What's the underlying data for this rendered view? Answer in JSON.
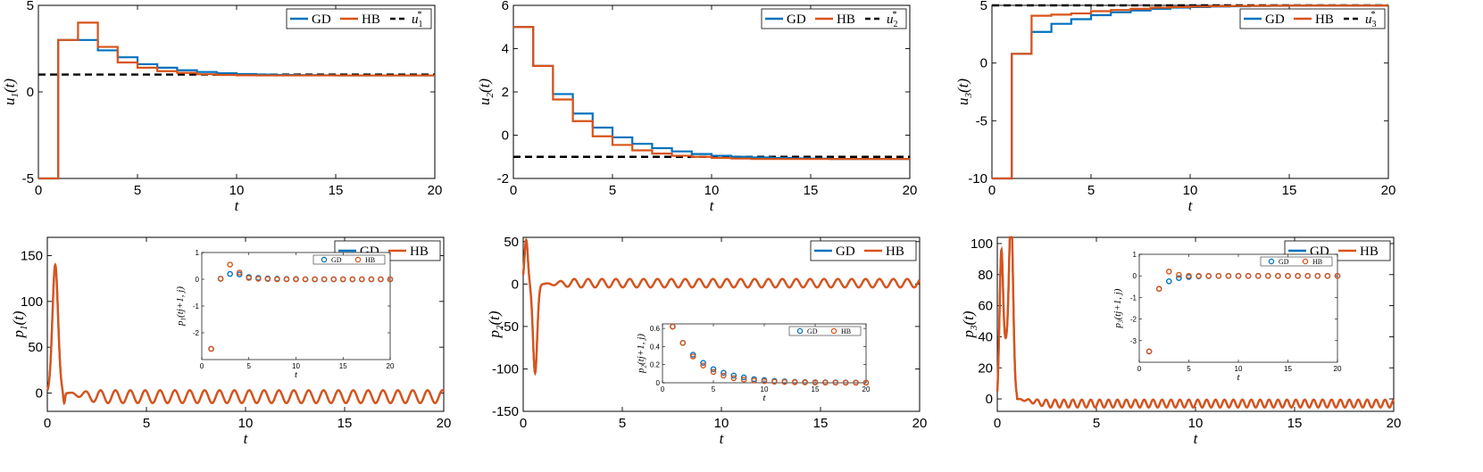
{
  "colors": {
    "gd": "#0072BD",
    "hb": "#D95319",
    "ref": "#000000",
    "axis": "#000000"
  },
  "chart_data": [
    {
      "id": "u1",
      "type": "line",
      "ylabel": "u1(t)",
      "xlabel": "t",
      "xlim": [
        0,
        20
      ],
      "ylim": [
        -5,
        5
      ],
      "xticks": [
        0,
        5,
        10,
        15,
        20
      ],
      "yticks": [
        -5,
        0,
        5
      ],
      "legend": {
        "position": "top-right",
        "entries": [
          "GD",
          "HB",
          "u1*"
        ]
      },
      "reference": 1,
      "series": [
        {
          "name": "GD",
          "style": "step",
          "x": [
            0,
            1,
            2,
            3,
            4,
            5,
            6,
            7,
            8,
            9,
            10,
            11,
            12,
            13,
            14,
            15,
            16,
            17,
            18,
            19,
            20
          ],
          "values": [
            -5,
            3.0,
            3.0,
            2.4,
            2.0,
            1.6,
            1.4,
            1.25,
            1.15,
            1.08,
            1.03,
            1.0,
            0.98,
            0.97,
            0.96,
            0.95,
            0.95,
            0.95,
            0.95,
            0.95,
            0.95
          ]
        },
        {
          "name": "HB",
          "style": "step",
          "x": [
            0,
            1,
            2,
            3,
            4,
            5,
            6,
            7,
            8,
            9,
            10,
            11,
            12,
            13,
            14,
            15,
            16,
            17,
            18,
            19,
            20
          ],
          "values": [
            -5,
            3.0,
            4.0,
            2.6,
            1.7,
            1.4,
            1.2,
            1.1,
            1.02,
            0.98,
            0.96,
            0.95,
            0.95,
            0.95,
            0.95,
            0.95,
            0.95,
            0.95,
            0.95,
            0.95,
            0.95
          ]
        }
      ]
    },
    {
      "id": "u2",
      "type": "line",
      "ylabel": "u2(t)",
      "xlabel": "t",
      "xlim": [
        0,
        20
      ],
      "ylim": [
        -2,
        6
      ],
      "xticks": [
        0,
        5,
        10,
        15,
        20
      ],
      "yticks": [
        -2,
        0,
        2,
        4,
        6
      ],
      "legend": {
        "position": "top-right",
        "entries": [
          "GD",
          "HB",
          "u2*"
        ]
      },
      "reference": -1,
      "series": [
        {
          "name": "GD",
          "style": "step",
          "x": [
            0,
            1,
            2,
            3,
            4,
            5,
            6,
            7,
            8,
            9,
            10,
            11,
            12,
            13,
            14,
            15,
            16,
            17,
            18,
            19,
            20
          ],
          "values": [
            5,
            3.2,
            1.9,
            1.0,
            0.35,
            -0.1,
            -0.4,
            -0.6,
            -0.75,
            -0.87,
            -0.95,
            -1.0,
            -1.03,
            -1.05,
            -1.07,
            -1.08,
            -1.1,
            -1.1,
            -1.1,
            -1.1,
            -1.1
          ]
        },
        {
          "name": "HB",
          "style": "step",
          "x": [
            0,
            1,
            2,
            3,
            4,
            5,
            6,
            7,
            8,
            9,
            10,
            11,
            12,
            13,
            14,
            15,
            16,
            17,
            18,
            19,
            20
          ],
          "values": [
            5,
            3.2,
            1.65,
            0.65,
            -0.05,
            -0.45,
            -0.7,
            -0.85,
            -0.95,
            -1.0,
            -1.05,
            -1.08,
            -1.1,
            -1.1,
            -1.1,
            -1.1,
            -1.1,
            -1.1,
            -1.1,
            -1.1,
            -1.1
          ]
        }
      ]
    },
    {
      "id": "u3",
      "type": "line",
      "ylabel": "u3(t)",
      "xlabel": "t",
      "xlim": [
        0,
        20
      ],
      "ylim": [
        -10,
        5
      ],
      "xticks": [
        0,
        5,
        10,
        15,
        20
      ],
      "yticks": [
        -10,
        -5,
        0,
        5
      ],
      "legend": {
        "position": "top-right",
        "entries": [
          "GD",
          "HB",
          "u3*"
        ]
      },
      "reference": 5,
      "series": [
        {
          "name": "GD",
          "style": "step",
          "x": [
            0,
            1,
            2,
            3,
            4,
            5,
            6,
            7,
            8,
            9,
            10,
            11,
            12,
            13,
            14,
            15,
            16,
            17,
            18,
            19,
            20
          ],
          "values": [
            -10,
            0.8,
            2.7,
            3.4,
            3.8,
            4.15,
            4.4,
            4.55,
            4.7,
            4.8,
            4.85,
            4.9,
            4.92,
            4.95,
            4.96,
            4.97,
            4.98,
            4.98,
            4.98,
            4.98,
            4.98
          ]
        },
        {
          "name": "HB",
          "style": "step",
          "x": [
            0,
            1,
            2,
            3,
            4,
            5,
            6,
            7,
            8,
            9,
            10,
            11,
            12,
            13,
            14,
            15,
            16,
            17,
            18,
            19,
            20
          ],
          "values": [
            -10,
            0.8,
            4.1,
            4.2,
            4.3,
            4.5,
            4.6,
            4.7,
            4.8,
            4.85,
            4.9,
            4.93,
            4.95,
            4.96,
            4.97,
            4.98,
            4.98,
            4.98,
            4.98,
            4.98,
            4.98
          ]
        }
      ]
    },
    {
      "id": "p1",
      "type": "line",
      "ylabel": "p1(t)",
      "xlabel": "t",
      "xlim": [
        0,
        20
      ],
      "ylim": [
        -20,
        170
      ],
      "xticks": [
        0,
        5,
        10,
        15,
        20
      ],
      "yticks": [
        0,
        50,
        100,
        150
      ],
      "legend": {
        "position": "top-right",
        "entries": [
          "GD",
          "HB"
        ]
      },
      "signal": {
        "bumps": [
          [
            0.4,
            0.2,
            140
          ]
        ],
        "dip": [
          0.85,
          0.06,
          -12
        ],
        "switch": 1.0,
        "osc": {
          "amp": 7,
          "offset": -4,
          "period": 0.75
        }
      },
      "inset": {
        "type": "scatter",
        "ylabel": "p1(tj+1, j)",
        "xlabel": "t",
        "xlim": [
          0,
          20
        ],
        "ylim": [
          -3,
          1
        ],
        "xticks": [
          0,
          5,
          10,
          15,
          20
        ],
        "yticks": [
          -2,
          -1,
          0,
          1
        ],
        "legend": {
          "position": "top-right",
          "entries": [
            "GD",
            "HB"
          ]
        },
        "series": [
          {
            "name": "GD",
            "x": [
              1,
              2,
              3,
              4,
              5,
              6,
              7,
              8,
              9,
              10,
              11,
              12,
              13,
              14,
              15,
              16,
              17,
              18,
              19,
              20
            ],
            "values": [
              -2.6,
              0.02,
              0.2,
              0.18,
              0.08,
              0.05,
              0.03,
              0.02,
              0.01,
              0.01,
              0,
              0,
              0,
              0,
              0,
              0,
              0,
              0,
              0,
              0
            ]
          },
          {
            "name": "HB",
            "x": [
              1,
              2,
              3,
              4,
              5,
              6,
              7,
              8,
              9,
              10,
              11,
              12,
              13,
              14,
              15,
              16,
              17,
              18,
              19,
              20
            ],
            "values": [
              -2.6,
              0.02,
              0.55,
              0.25,
              0.05,
              0.02,
              0.01,
              0,
              0,
              0,
              0,
              0,
              0,
              0,
              0,
              0,
              0,
              0,
              0,
              0
            ]
          }
        ]
      }
    },
    {
      "id": "p2",
      "type": "line",
      "ylabel": "p2(t)",
      "xlabel": "t",
      "xlim": [
        0,
        20
      ],
      "ylim": [
        -150,
        55
      ],
      "xticks": [
        0,
        5,
        10,
        15,
        20
      ],
      "yticks": [
        -150,
        -100,
        -50,
        0,
        50
      ],
      "legend": {
        "position": "top-right",
        "entries": [
          "GD",
          "HB"
        ]
      },
      "signal": {
        "bumps": [
          [
            0.15,
            0.12,
            52
          ],
          [
            0.6,
            0.15,
            -105
          ]
        ],
        "dip": [
          0.95,
          0.05,
          0
        ],
        "switch": 1.0,
        "osc": {
          "amp": 5,
          "offset": 1,
          "period": 0.7
        }
      },
      "inset": {
        "type": "scatter",
        "ylabel": "p2(tj+1, j)",
        "xlabel": "t",
        "xlim": [
          0,
          20
        ],
        "ylim": [
          0,
          0.65
        ],
        "xticks": [
          0,
          5,
          10,
          15,
          20
        ],
        "yticks": [
          0,
          0.2,
          0.4,
          0.6
        ],
        "legend": {
          "position": "top-right",
          "entries": [
            "GD",
            "HB"
          ]
        },
        "series": [
          {
            "name": "GD",
            "x": [
              1,
              2,
              3,
              4,
              5,
              6,
              7,
              8,
              9,
              10,
              11,
              12,
              13,
              14,
              15,
              16,
              17,
              18,
              19,
              20
            ],
            "values": [
              0.62,
              0.44,
              0.31,
              0.22,
              0.15,
              0.11,
              0.08,
              0.06,
              0.04,
              0.03,
              0.02,
              0.015,
              0.01,
              0.008,
              0.006,
              0.005,
              0.004,
              0.003,
              0.002,
              0.002
            ]
          },
          {
            "name": "HB",
            "x": [
              1,
              2,
              3,
              4,
              5,
              6,
              7,
              8,
              9,
              10,
              11,
              12,
              13,
              14,
              15,
              16,
              17,
              18,
              19,
              20
            ],
            "values": [
              0.62,
              0.44,
              0.29,
              0.19,
              0.12,
              0.08,
              0.05,
              0.035,
              0.025,
              0.018,
              0.012,
              0.008,
              0.006,
              0.004,
              0.003,
              0.002,
              0.002,
              0.001,
              0.001,
              0.001
            ]
          }
        ]
      }
    },
    {
      "id": "p3",
      "type": "line",
      "ylabel": "p3(t)",
      "xlabel": "t",
      "xlim": [
        0,
        20
      ],
      "ylim": [
        -8,
        104
      ],
      "xticks": [
        0,
        5,
        10,
        15,
        20
      ],
      "yticks": [
        0,
        20,
        40,
        60,
        80,
        100
      ],
      "legend": {
        "position": "top-right",
        "entries": [
          "GD",
          "HB"
        ]
      },
      "signal": {
        "bumps": [
          [
            0.2,
            0.1,
            78
          ],
          [
            0.7,
            0.12,
            103
          ]
        ],
        "base": [
          0.45,
          0.1,
          -35
        ],
        "switch": 1.0,
        "osc": {
          "amp": 2.5,
          "offset": -3,
          "period": 0.45
        }
      },
      "inset": {
        "type": "scatter",
        "ylabel": "p3(tj+1, j)",
        "xlabel": "t",
        "xlim": [
          0,
          20
        ],
        "ylim": [
          -4,
          1
        ],
        "xticks": [
          0,
          5,
          10,
          15,
          20
        ],
        "yticks": [
          -3,
          -2,
          -1,
          0,
          1
        ],
        "legend": {
          "position": "top-right",
          "entries": [
            "GD",
            "HB"
          ]
        },
        "series": [
          {
            "name": "GD",
            "x": [
              1,
              2,
              3,
              4,
              5,
              6,
              7,
              8,
              9,
              10,
              11,
              12,
              13,
              14,
              15,
              16,
              17,
              18,
              19,
              20
            ],
            "values": [
              -3.5,
              -0.6,
              -0.25,
              -0.1,
              -0.05,
              -0.02,
              -0.01,
              0,
              0,
              0,
              0,
              0,
              0,
              0,
              0,
              0,
              0,
              0,
              0,
              0
            ]
          },
          {
            "name": "HB",
            "x": [
              1,
              2,
              3,
              4,
              5,
              6,
              7,
              8,
              9,
              10,
              11,
              12,
              13,
              14,
              15,
              16,
              17,
              18,
              19,
              20
            ],
            "values": [
              -3.5,
              -0.6,
              0.2,
              0.05,
              0,
              0,
              0,
              0,
              0,
              0,
              0,
              0,
              0,
              0,
              0,
              0,
              0,
              0,
              0,
              0
            ]
          }
        ]
      }
    }
  ]
}
